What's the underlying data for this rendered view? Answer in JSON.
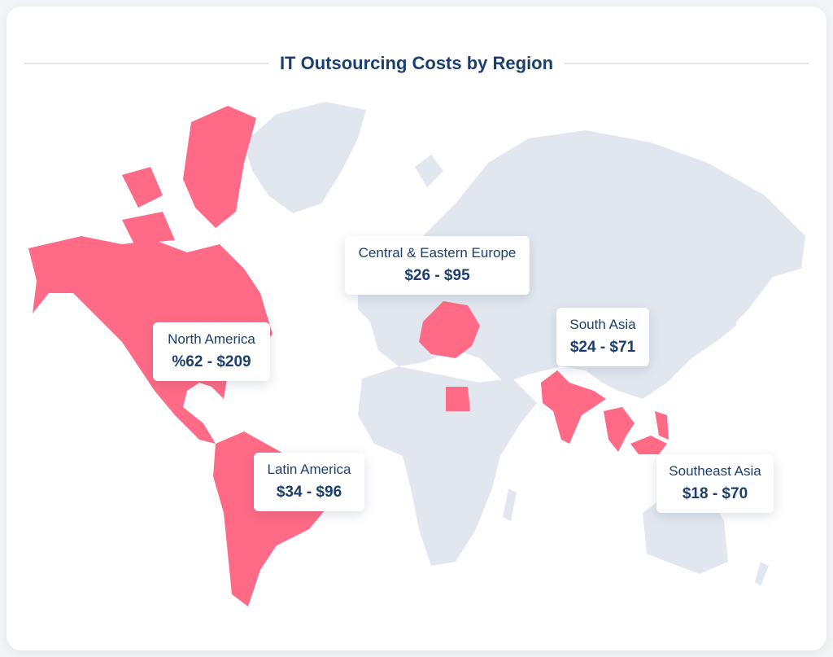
{
  "title": "IT Outsourcing Costs by Region",
  "colors": {
    "highlight": "#ff6b86",
    "land": "#e2e7ef",
    "text": "#1b3f6e"
  },
  "regions": [
    {
      "name": "North America",
      "range": "%62 - $209"
    },
    {
      "name": "Central & Eastern Europe",
      "range": "$26 - $95"
    },
    {
      "name": "South Asia",
      "range": "$24 - $71"
    },
    {
      "name": "Latin America",
      "range": "$34 - $96"
    },
    {
      "name": "Southeast Asia",
      "range": "$18 - $70"
    }
  ]
}
